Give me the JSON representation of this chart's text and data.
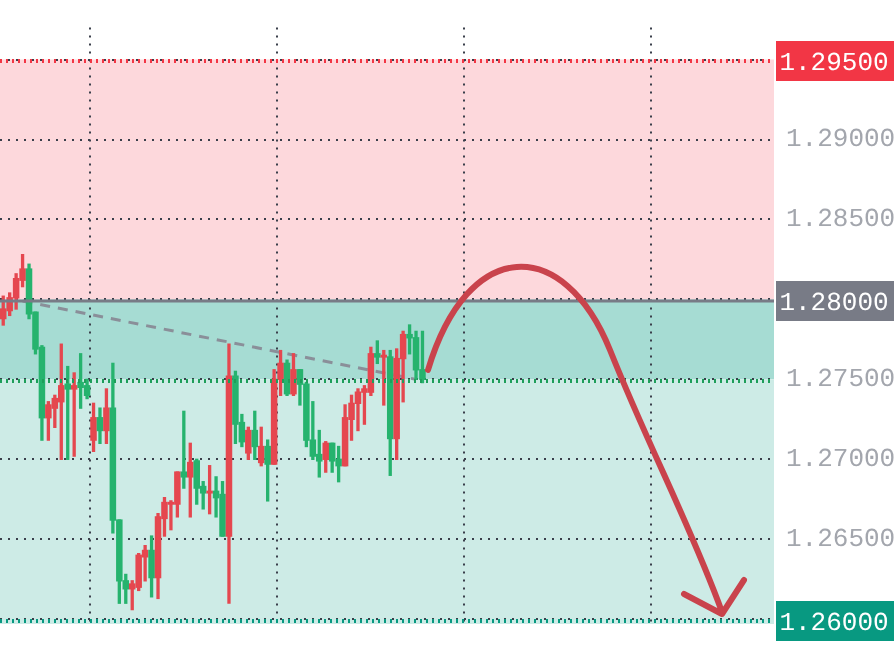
{
  "chart_data": {
    "type": "candlestick",
    "categories": [
      null,
      null,
      null,
      null,
      null,
      null,
      null,
      null,
      null,
      null,
      null,
      null,
      null,
      null,
      null,
      null,
      null,
      null,
      null,
      null,
      null,
      null,
      null,
      null,
      null,
      null,
      null,
      null,
      null,
      null,
      null,
      null,
      null,
      null,
      null,
      null,
      null,
      null,
      null,
      null,
      null,
      null,
      null,
      null,
      null,
      null,
      null,
      null,
      null,
      null,
      null,
      null,
      null,
      null,
      null,
      null,
      null,
      null,
      null,
      null,
      null,
      null,
      null,
      null,
      null,
      null,
      null,
      null,
      null,
      null,
      null,
      null,
      null,
      null,
      null,
      null,
      null,
      null,
      null,
      null,
      null,
      null,
      null,
      null,
      null,
      null,
      null,
      null,
      null,
      null,
      null,
      null,
      null,
      null,
      null,
      null,
      null,
      null,
      null,
      null,
      null,
      null,
      null,
      null,
      null,
      null,
      null,
      null,
      null,
      null,
      null,
      null,
      null,
      null,
      null,
      null,
      null,
      null,
      null,
      null
    ],
    "ohlc": [
      [
        1.2788,
        1.2802,
        1.2784,
        1.2794
      ],
      [
        1.2793,
        1.2804,
        1.279,
        1.2801
      ],
      [
        1.2801,
        1.2816,
        1.2794,
        1.2813
      ],
      [
        1.2812,
        1.2828,
        1.2808,
        1.2819
      ],
      [
        1.2819,
        1.2822,
        1.2788,
        1.2791
      ],
      [
        1.2792,
        1.2792,
        1.2766,
        1.2769
      ],
      [
        1.277,
        1.2771,
        1.2712,
        1.2726
      ],
      [
        1.2726,
        1.2736,
        1.2712,
        1.2734
      ],
      [
        1.2732,
        1.274,
        1.272,
        1.2738
      ],
      [
        1.2736,
        1.2772,
        1.27,
        1.2746
      ],
      [
        1.2747,
        1.2758,
        1.27,
        1.2744
      ],
      [
        1.2744,
        1.2754,
        1.2702,
        1.2746
      ],
      [
        1.2748,
        1.2766,
        1.2732,
        1.2745
      ],
      [
        1.2746,
        1.275,
        1.2738,
        1.274
      ],
      [
        1.2712,
        1.2735,
        1.2705,
        1.2726
      ],
      [
        1.2726,
        1.2732,
        1.271,
        1.2718
      ],
      [
        1.2718,
        1.2744,
        1.271,
        1.2732
      ],
      [
        1.2732,
        1.276,
        1.2654,
        1.2662
      ],
      [
        1.2662,
        1.2662,
        1.261,
        1.2624
      ],
      [
        1.2624,
        1.2628,
        1.261,
        1.2619
      ],
      [
        1.2619,
        1.2624,
        1.2606,
        1.2622
      ],
      [
        1.262,
        1.2641,
        1.2618,
        1.264
      ],
      [
        1.2639,
        1.2646,
        1.2624,
        1.2643
      ],
      [
        1.2643,
        1.2652,
        1.2614,
        1.2626
      ],
      [
        1.2626,
        1.2666,
        1.2613,
        1.2664
      ],
      [
        1.2663,
        1.2676,
        1.2652,
        1.2673
      ],
      [
        1.2672,
        1.2674,
        1.2656,
        1.2673
      ],
      [
        1.2672,
        1.2692,
        1.2664,
        1.2692
      ],
      [
        1.2692,
        1.273,
        1.2682,
        1.2689
      ],
      [
        1.2689,
        1.271,
        1.2664,
        1.2698
      ],
      [
        1.2699,
        1.27,
        1.2672,
        1.2682
      ],
      [
        1.2683,
        1.2686,
        1.2669,
        1.2679
      ],
      [
        1.2679,
        1.2696,
        1.2666,
        1.268
      ],
      [
        1.268,
        1.2689,
        1.2664,
        1.2676
      ],
      [
        1.2678,
        1.2686,
        1.2652,
        1.2652
      ],
      [
        1.2652,
        1.2772,
        1.261,
        1.2752
      ],
      [
        1.2752,
        1.2755,
        1.271,
        1.2722
      ],
      [
        1.2723,
        1.2728,
        1.2708,
        1.2711
      ],
      [
        1.2704,
        1.272,
        1.27,
        1.2718
      ],
      [
        1.2718,
        1.273,
        1.27,
        1.2708
      ],
      [
        1.2698,
        1.272,
        1.2696,
        1.2708
      ],
      [
        1.2708,
        1.2712,
        1.2674,
        1.2697
      ],
      [
        1.2697,
        1.2756,
        1.2697,
        1.275
      ],
      [
        1.275,
        1.2768,
        1.274,
        1.276
      ],
      [
        1.276,
        1.2762,
        1.274,
        1.2741
      ],
      [
        1.2741,
        1.2766,
        1.274,
        1.2756
      ],
      [
        1.2756,
        1.2756,
        1.2734,
        1.2747
      ],
      [
        1.2747,
        1.2748,
        1.2708,
        1.2712
      ],
      [
        1.2712,
        1.2736,
        1.27,
        1.2702
      ],
      [
        1.2703,
        1.2718,
        1.2689,
        1.2699
      ],
      [
        1.27,
        1.2711,
        1.2692,
        1.271
      ],
      [
        1.271,
        1.271,
        1.2692,
        1.2699
      ],
      [
        1.27,
        1.2708,
        1.2686,
        1.2696
      ],
      [
        1.2696,
        1.2734,
        1.2696,
        1.2726
      ],
      [
        1.2725,
        1.274,
        1.2712,
        1.2735
      ],
      [
        1.2735,
        1.2744,
        1.2718,
        1.2742
      ],
      [
        1.2742,
        1.2746,
        1.2722,
        1.2744
      ],
      [
        1.2742,
        1.277,
        1.274,
        1.2766
      ],
      [
        1.2766,
        1.2774,
        1.276,
        1.2764
      ],
      [
        1.2764,
        1.2768,
        1.2734,
        1.2765
      ],
      [
        1.2764,
        1.2768,
        1.269,
        1.2713
      ],
      [
        1.2713,
        1.2769,
        1.27,
        1.2763
      ],
      [
        1.2763,
        1.278,
        1.2736,
        1.2778
      ],
      [
        1.2778,
        1.2784,
        1.2766,
        1.2776
      ],
      [
        1.2776,
        1.278,
        1.275,
        1.2756
      ],
      [
        1.2756,
        1.278,
        1.2748,
        1.275
      ],
      null,
      null,
      null,
      null,
      null,
      null,
      null,
      null,
      null,
      null,
      null,
      null,
      null,
      null,
      null,
      null,
      null,
      null,
      null,
      null,
      null,
      null,
      null,
      null,
      null,
      null,
      null,
      null,
      null,
      null,
      null,
      null,
      null,
      null,
      null,
      null,
      null,
      null,
      null,
      null,
      null,
      null,
      null,
      null,
      null,
      null,
      null,
      null,
      null,
      null,
      null,
      null,
      null,
      null
    ],
    "colors": [
      "#e5474f",
      "#e5474f",
      "#e5474f",
      "#e5474f",
      "#26b36e",
      "#26b36e",
      "#26b36e",
      "#e5474f",
      "#e5474f",
      "#e5474f",
      "#26b36e",
      "#e5474f",
      "#26b36e",
      "#26b36e",
      "#e5474f",
      "#26b36e",
      "#e5474f",
      "#26b36e",
      "#26b36e",
      "#26b36e",
      "#e5474f",
      "#e5474f",
      "#e5474f",
      "#26b36e",
      "#e5474f",
      "#e5474f",
      "#e5474f",
      "#e5474f",
      "#26b36e",
      "#e5474f",
      "#26b36e",
      "#26b36e",
      "#e5474f",
      "#26b36e",
      "#26b36e",
      "#e5474f",
      "#26b36e",
      "#26b36e",
      "#e5474f",
      "#26b36e",
      "#e5474f",
      "#26b36e",
      "#e5474f",
      "#e5474f",
      "#26b36e",
      "#e5474f",
      "#26b36e",
      "#26b36e",
      "#26b36e",
      "#26b36e",
      "#e5474f",
      "#26b36e",
      "#26b36e",
      "#e5474f",
      "#e5474f",
      "#e5474f",
      "#e5474f",
      "#e5474f",
      "#26b36e",
      "#e5474f",
      "#26b36e",
      "#e5474f",
      "#e5474f",
      "#26b36e",
      "#26b36e",
      "#26b36e",
      null,
      null,
      null,
      null,
      null,
      null,
      null,
      null,
      null,
      null,
      null,
      null,
      null,
      null,
      null,
      null,
      null,
      null,
      null,
      null,
      null,
      null,
      null,
      null,
      null,
      null,
      null,
      null,
      null,
      null,
      null,
      null,
      null,
      null,
      null,
      null,
      null,
      null,
      null,
      null,
      null,
      null,
      null,
      null,
      null,
      null,
      null,
      null,
      null,
      null,
      null,
      null,
      null,
      null
    ],
    "series": [
      {
        "type": "line",
        "color": "#8a8f99",
        "line_style": "dashed",
        "values": [
          null,
          null,
          null,
          1.2799,
          null,
          null,
          null,
          null,
          null,
          null,
          null,
          null,
          null,
          null,
          null,
          null,
          null,
          null,
          null,
          null,
          null,
          null,
          null,
          null,
          null,
          null,
          null,
          null,
          null,
          null,
          null,
          null,
          null,
          null,
          null,
          null,
          null,
          null,
          null,
          null,
          null,
          null,
          null,
          null,
          null,
          null,
          null,
          null,
          null,
          null,
          null,
          null,
          null,
          null,
          null,
          null,
          null,
          null,
          null,
          null,
          null,
          null,
          null,
          null,
          1.275,
          null,
          null,
          null,
          null,
          null,
          null,
          null,
          null,
          null,
          null,
          null,
          null,
          null,
          null,
          null,
          null,
          null,
          null,
          null,
          null,
          null,
          null,
          null,
          null,
          null,
          null,
          null,
          null,
          null,
          null,
          null,
          null,
          null,
          null,
          null,
          null,
          null,
          null,
          null,
          null,
          null,
          null,
          null,
          null,
          null,
          null,
          null,
          null,
          null,
          null,
          null,
          null,
          null,
          null,
          null
        ]
      }
    ],
    "ylim": [
      1.2597,
      1.297
    ],
    "yticks": [
      {
        "value": 1.26,
        "label": null
      },
      {
        "value": 1.265,
        "label": "1.26500"
      },
      {
        "value": 1.27,
        "label": "1.27000"
      },
      {
        "value": 1.275,
        "label": "1.27500"
      },
      {
        "value": 1.28,
        "label": null
      },
      {
        "value": 1.285,
        "label": "1.28500"
      },
      {
        "value": 1.29,
        "label": "1.29000"
      },
      {
        "value": 1.295,
        "label": null
      }
    ],
    "bands": [
      {
        "axis": "y",
        "from": 1.28,
        "to": 1.295,
        "color": "#fdd8dc"
      },
      {
        "axis": "y",
        "from": 1.275,
        "to": 1.28,
        "color": "#a6dcd3"
      },
      {
        "axis": "y",
        "from": 1.2597,
        "to": 1.275,
        "color": "#cdebe6"
      }
    ],
    "ref_lines": [
      {
        "axis": "y",
        "value": 1.295,
        "label": "1.29500",
        "color": "#f23645",
        "line_style": "dotted"
      },
      {
        "axis": "y",
        "value": 1.28,
        "label": "1.28000",
        "color": "#787b86",
        "line_style": "solid"
      },
      {
        "axis": "y",
        "value": 1.275,
        "color": "#1e9e5a",
        "line_style": "dotted"
      },
      {
        "axis": "y",
        "value": 1.26,
        "label": "1.26000",
        "color": "#089981",
        "line_style": "dotted"
      }
    ],
    "grid": true,
    "tick_labels": "y"
  }
}
